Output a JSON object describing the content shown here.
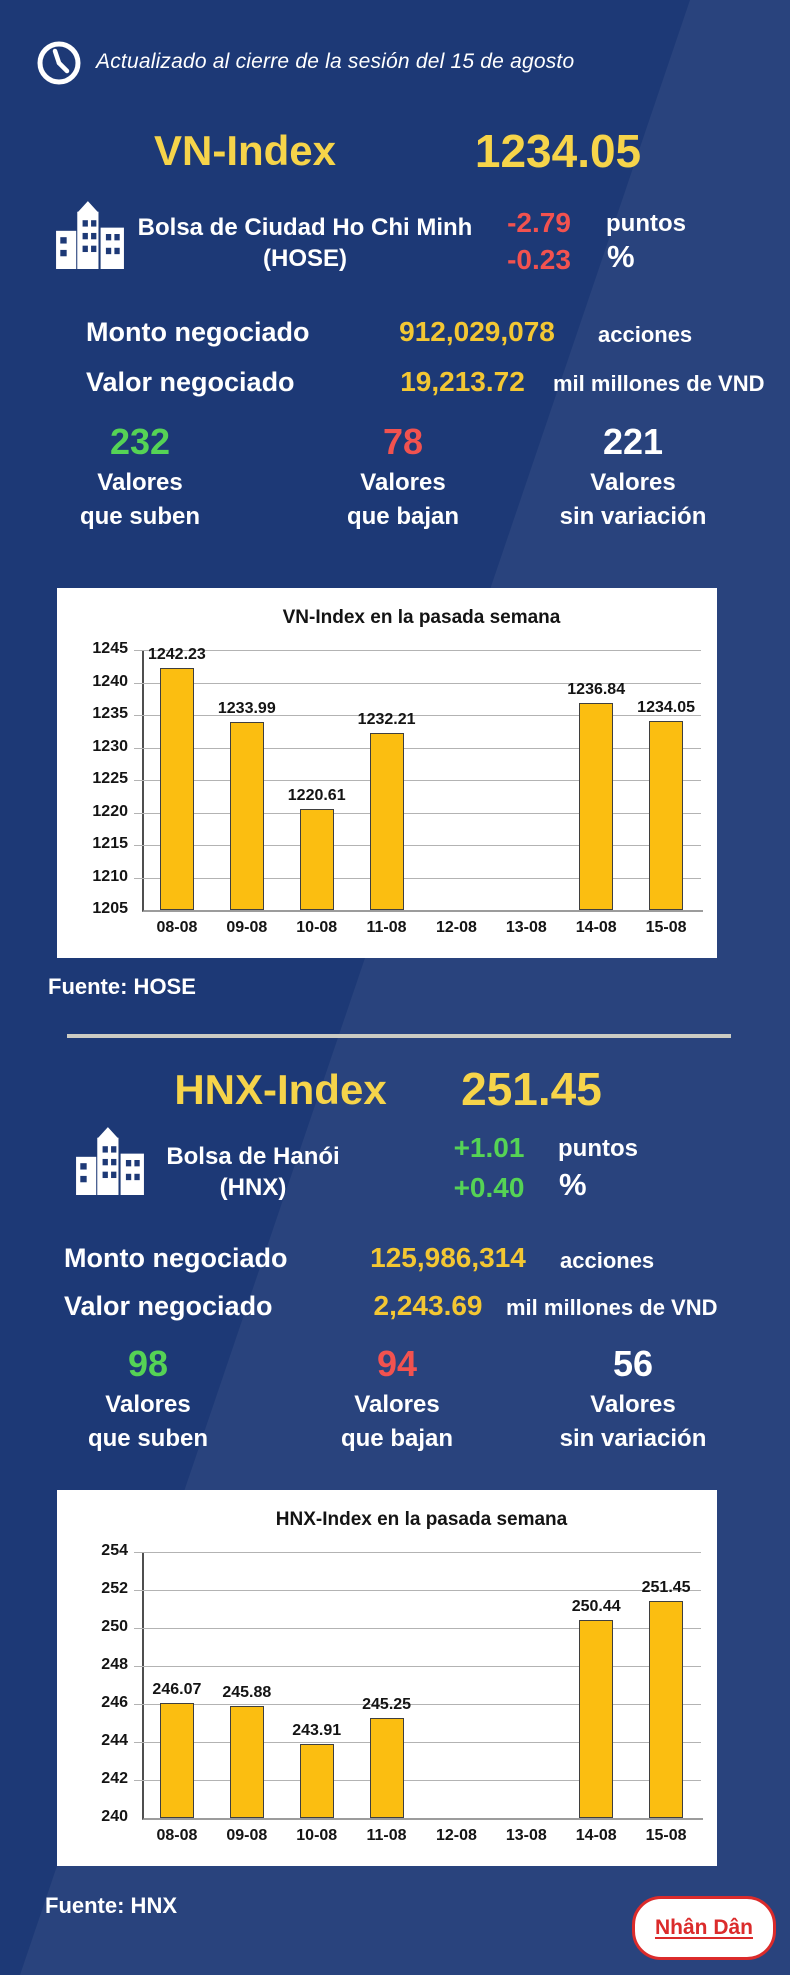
{
  "header": {
    "updated_text": "Actualizado al cierre de la sesión del 15 de agosto"
  },
  "colors": {
    "background": "#1d3976",
    "accent_yellow": "#f6d44a",
    "number_yellow": "#f3c733",
    "red": "#f2524f",
    "green": "#55d355",
    "bar_yellow": "#fbbe11",
    "divider": "#ccccc3",
    "logo_red": "#db2b2b",
    "panel": "#ffffff"
  },
  "hose": {
    "index_name": "VN-Index",
    "index_value": "1234.05",
    "exchange_line1": "Bolsa de Ciudad Ho Chi Minh",
    "exchange_line2": "(HOSE)",
    "change_points": "-2.79",
    "points_unit": "puntos",
    "change_percent": "-0.23",
    "percent_unit": "%",
    "volume_label": "Monto negociado",
    "volume_value": "912,029,078",
    "volume_unit": "acciones",
    "turnover_label": "Valor negociado",
    "turnover_value": "19,213.72",
    "turnover_unit": "mil millones de VND",
    "advancers": {
      "count": "232",
      "line1": "Valores",
      "line2": "que suben"
    },
    "decliners": {
      "count": "78",
      "line1": "Valores",
      "line2": "que bajan"
    },
    "unchanged": {
      "count": "221",
      "line1": "Valores",
      "line2": "sin variación"
    },
    "source": "Fuente: HOSE"
  },
  "hnx": {
    "index_name": "HNX-Index",
    "index_value": "251.45",
    "exchange_line1": "Bolsa de Hanói",
    "exchange_line2": "(HNX)",
    "change_points": "+1.01",
    "points_unit": "puntos",
    "change_percent": "+0.40",
    "percent_unit": "%",
    "volume_label": "Monto negociado",
    "volume_value": "125,986,314",
    "volume_unit": "acciones",
    "turnover_label": "Valor negociado",
    "turnover_value": "2,243.69",
    "turnover_unit": "mil millones de VND",
    "advancers": {
      "count": "98",
      "line1": "Valores",
      "line2": "que suben"
    },
    "decliners": {
      "count": "94",
      "line1": "Valores",
      "line2": "que bajan"
    },
    "unchanged": {
      "count": "56",
      "line1": "Valores",
      "line2": "sin variación"
    },
    "source": "Fuente: HNX"
  },
  "footer": {
    "logo_text": "Nhân Dân"
  },
  "chart_data": [
    {
      "type": "bar",
      "title": "VN-Index en la pasada semana",
      "categories": [
        "08-08",
        "09-08",
        "10-08",
        "11-08",
        "12-08",
        "13-08",
        "14-08",
        "15-08"
      ],
      "values": [
        1242.23,
        1233.99,
        1220.61,
        1232.21,
        null,
        null,
        1236.84,
        1234.05
      ],
      "labels": [
        "1242.23",
        "1233.99",
        "1220.61",
        "1232.21",
        "",
        "",
        "1236.84",
        "1234.05"
      ],
      "ylim": [
        1205,
        1245
      ],
      "ytick_step": 5,
      "bar_color": "#fbbe11",
      "grid": true,
      "legend": "none"
    },
    {
      "type": "bar",
      "title": "HNX-Index en la pasada semana",
      "categories": [
        "08-08",
        "09-08",
        "10-08",
        "11-08",
        "12-08",
        "13-08",
        "14-08",
        "15-08"
      ],
      "values": [
        246.07,
        245.88,
        243.91,
        245.25,
        null,
        null,
        250.44,
        251.45
      ],
      "labels": [
        "246.07",
        "245.88",
        "243.91",
        "245.25",
        "",
        "",
        "250.44",
        "251.45"
      ],
      "ylim": [
        240,
        254
      ],
      "ytick_step": 2,
      "bar_color": "#fbbe11",
      "grid": true,
      "legend": "none"
    }
  ]
}
